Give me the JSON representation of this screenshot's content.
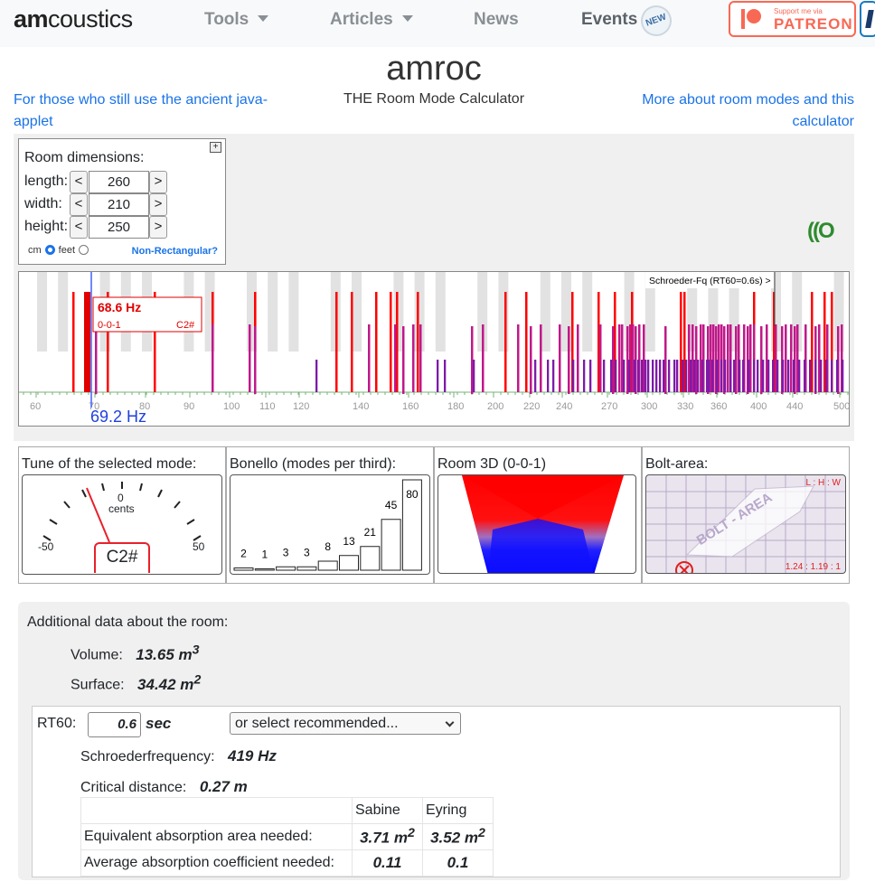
{
  "navbar": {
    "logo": "amcoustics",
    "logo_first": "am",
    "logo_rest": "coustics",
    "items": [
      {
        "label": "Tools",
        "dropdown": true
      },
      {
        "label": "Articles",
        "dropdown": true
      },
      {
        "label": "News",
        "dropdown": false
      },
      {
        "label": "Events",
        "dropdown": false
      }
    ],
    "events_badge": "NEW",
    "patreon_top": "Support me via",
    "patreon_label": "PATREON",
    "patreon_color": "#f96854"
  },
  "header": {
    "title": "amroc",
    "subtitle": "THE Room Mode Calculator",
    "left_link": "For those who still use the ancient java-applet",
    "right_link": "More about room modes and this calculator"
  },
  "room": {
    "title": "Room dimensions:",
    "expand_button": "+",
    "dec_label": "<",
    "inc_label": ">",
    "dimensions": [
      {
        "label": "length:",
        "value": "260"
      },
      {
        "label": "width:",
        "value": "210"
      },
      {
        "label": "height:",
        "value": "250"
      }
    ],
    "unit_cm": "cm",
    "unit_feet": "feet",
    "unit_selected": "cm",
    "non_rectangular": "Non-Rectangular?",
    "mini_logo": "((O"
  },
  "spectrum": {
    "schroeder_label": "Schroeder-Fq (RT60=0.6s) >",
    "tooltip_freq": "68.6 Hz",
    "tooltip_mode": "0-0-1",
    "tooltip_note": "C2#",
    "cursor_freq": "69.2 Hz",
    "tick_labels": [
      "60",
      "70",
      "80",
      "90",
      "100",
      "110",
      "120",
      "140",
      "160",
      "180",
      "200",
      "220",
      "240",
      "270",
      "300",
      "330",
      "360",
      "400",
      "440",
      "500"
    ]
  },
  "tuner": {
    "title": "Tune of the selected mode:",
    "zero": "0",
    "cents": "cents",
    "minus": "-50",
    "plus": "50",
    "note": "C2#"
  },
  "bonello": {
    "title": "Bonello (modes per third):",
    "values": [
      "2",
      "1",
      "3",
      "3",
      "8",
      "13",
      "21",
      "45",
      "80"
    ]
  },
  "room3d": {
    "title": "Room 3D (0-0-1)"
  },
  "bolt": {
    "title": "Bolt-area:",
    "ratio_header": "L : H : W",
    "ratio_value": "1.24 : 1.19 : 1",
    "watermark": "BOLT - AREA"
  },
  "additional": {
    "title": "Additional data about the room:",
    "volume_label": "Volume:",
    "volume_value": "13.65 m",
    "volume_sup": "3",
    "surface_label": "Surface:",
    "surface_value": "34.42 m",
    "surface_sup": "2",
    "rt60_label": "RT60:",
    "rt60_value": "0.6",
    "rt60_unit": "sec",
    "recommend_select": "or select recommended...",
    "schroeder_label": "Schroederfrequency:",
    "schroeder_value": "419 Hz",
    "critical_label": "Critical distance:",
    "critical_value": "0.27 m",
    "table": {
      "col_sabine": "Sabine",
      "col_eyring": "Eyring",
      "row1_label": "Equivalent absorption area needed:",
      "row1_sabine": "3.71 m",
      "row1_eyring": "3.52 m",
      "sup": "2",
      "row2_label": "Average absorption coefficient needed:",
      "row2_sabine": "0.11",
      "row2_eyring": "0.1"
    }
  }
}
